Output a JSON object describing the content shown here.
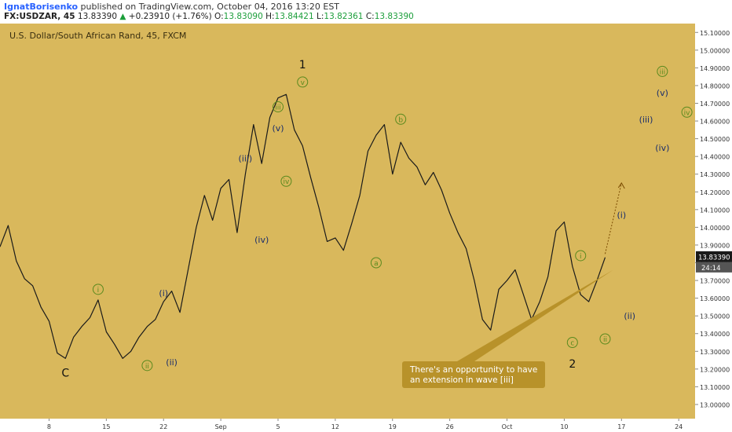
{
  "header": {
    "author": "IgnatBorisenko",
    "published": "published on TradingView.com, October 04, 2016 13:20 EST",
    "symbol": "FX:USDZAR, 45",
    "last": "13.83390",
    "change_arrow": "▲",
    "change": "+0.23910 (+1.76%)",
    "o_label": "O:",
    "o": "13.83090",
    "h_label": "H:",
    "h": "13.84421",
    "l_label": "L:",
    "l": "13.82361",
    "c_label": "C:",
    "c": "13.83390"
  },
  "colors": {
    "background": "#d9b85c",
    "candle": "#1a1a1a",
    "wave_green": "#5a8a1e",
    "wave_navy": "#1a2d6b",
    "callout_fill": "#b8922a",
    "price_tag": "#1a1a1a"
  },
  "chart_data": {
    "type": "line",
    "title": "U.S. Dollar/South African Rand, 45, FXCM",
    "ylim": [
      12.92,
      15.15
    ],
    "y_ticks": [
      "15.10000",
      "15.00000",
      "14.90000",
      "14.80000",
      "14.70000",
      "14.60000",
      "14.50000",
      "14.40000",
      "14.30000",
      "14.20000",
      "14.10000",
      "14.00000",
      "13.90000",
      "13.80000",
      "13.70000",
      "13.60000",
      "13.50000",
      "13.40000",
      "13.30000",
      "13.20000",
      "13.10000",
      "13.00000"
    ],
    "x_ticks": [
      "8",
      "15",
      "22",
      "Sep",
      "5",
      "12",
      "19",
      "26",
      "Oct",
      "10",
      "17",
      "24"
    ],
    "xlim": [
      "2016-08-02",
      "2016-10-26"
    ],
    "grid": false,
    "last_price_label": "13.83390",
    "countdown_label": "24:14",
    "series": [
      {
        "points": [
          [
            "2016-08-02",
            13.89
          ],
          [
            "2016-08-03",
            14.01
          ],
          [
            "2016-08-04",
            13.81
          ],
          [
            "2016-08-05",
            13.71
          ],
          [
            "2016-08-06",
            13.67
          ],
          [
            "2016-08-07",
            13.55
          ],
          [
            "2016-08-08",
            13.47
          ],
          [
            "2016-08-09",
            13.29
          ],
          [
            "2016-08-10",
            13.26
          ],
          [
            "2016-08-11",
            13.38
          ],
          [
            "2016-08-12",
            13.44
          ],
          [
            "2016-08-13",
            13.49
          ],
          [
            "2016-08-14",
            13.59
          ],
          [
            "2016-08-15",
            13.41
          ],
          [
            "2016-08-16",
            13.34
          ],
          [
            "2016-08-17",
            13.26
          ],
          [
            "2016-08-18",
            13.3
          ],
          [
            "2016-08-19",
            13.38
          ],
          [
            "2016-08-20",
            13.44
          ],
          [
            "2016-08-21",
            13.48
          ],
          [
            "2016-08-22",
            13.58
          ],
          [
            "2016-08-23",
            13.64
          ],
          [
            "2016-08-24",
            13.52
          ],
          [
            "2016-08-25",
            13.76
          ],
          [
            "2016-08-26",
            14.0
          ],
          [
            "2016-08-27",
            14.18
          ],
          [
            "2016-08-28",
            14.04
          ],
          [
            "2016-08-29",
            14.22
          ],
          [
            "2016-08-30",
            14.27
          ],
          [
            "2016-08-31",
            13.97
          ],
          [
            "2016-09-01",
            14.3
          ],
          [
            "2016-09-02",
            14.58
          ],
          [
            "2016-09-03",
            14.36
          ],
          [
            "2016-09-04",
            14.62
          ],
          [
            "2016-09-05",
            14.73
          ],
          [
            "2016-09-06",
            14.75
          ],
          [
            "2016-09-07",
            14.55
          ],
          [
            "2016-09-08",
            14.46
          ],
          [
            "2016-09-09",
            14.28
          ],
          [
            "2016-09-10",
            14.11
          ],
          [
            "2016-09-11",
            13.92
          ],
          [
            "2016-09-12",
            13.94
          ],
          [
            "2016-09-13",
            13.87
          ],
          [
            "2016-09-14",
            14.02
          ],
          [
            "2016-09-15",
            14.18
          ],
          [
            "2016-09-16",
            14.43
          ],
          [
            "2016-09-17",
            14.52
          ],
          [
            "2016-09-18",
            14.58
          ],
          [
            "2016-09-19",
            14.3
          ],
          [
            "2016-09-20",
            14.48
          ],
          [
            "2016-09-21",
            14.39
          ],
          [
            "2016-09-22",
            14.34
          ],
          [
            "2016-09-23",
            14.24
          ],
          [
            "2016-09-24",
            14.31
          ],
          [
            "2016-09-25",
            14.21
          ],
          [
            "2016-09-26",
            14.08
          ],
          [
            "2016-09-27",
            13.97
          ],
          [
            "2016-09-28",
            13.88
          ],
          [
            "2016-09-29",
            13.7
          ],
          [
            "2016-09-30",
            13.48
          ],
          [
            "2016-10-01",
            13.42
          ],
          [
            "2016-10-02",
            13.65
          ],
          [
            "2016-10-03",
            13.7
          ],
          [
            "2016-10-04",
            13.76
          ],
          [
            "2016-10-05",
            13.62
          ],
          [
            "2016-10-06",
            13.48
          ],
          [
            "2016-10-07",
            13.58
          ],
          [
            "2016-10-08",
            13.72
          ],
          [
            "2016-10-09",
            13.98
          ],
          [
            "2016-10-10",
            14.03
          ],
          [
            "2016-10-11",
            13.78
          ],
          [
            "2016-10-12",
            13.62
          ],
          [
            "2016-10-13",
            13.58
          ],
          [
            "2016-10-14",
            13.7
          ],
          [
            "2016-10-15",
            13.83
          ]
        ]
      }
    ],
    "annotations": {
      "wave_labels": [
        {
          "text": "C",
          "date": "2016-08-10",
          "price": 13.18,
          "style": "plain"
        },
        {
          "text": "i",
          "date": "2016-08-14",
          "price": 13.65,
          "style": "circle"
        },
        {
          "text": "ii",
          "date": "2016-08-20",
          "price": 13.22,
          "style": "circle"
        },
        {
          "text": "(i)",
          "date": "2016-08-22",
          "price": 13.63,
          "style": "navy"
        },
        {
          "text": "(ii)",
          "date": "2016-08-23",
          "price": 13.24,
          "style": "navy"
        },
        {
          "text": "(iii)",
          "date": "2016-09-01",
          "price": 14.39,
          "style": "navy"
        },
        {
          "text": "(iv)",
          "date": "2016-09-03",
          "price": 13.93,
          "style": "navy"
        },
        {
          "text": "iii",
          "date": "2016-09-05",
          "price": 14.68,
          "style": "circle"
        },
        {
          "text": "(v)",
          "date": "2016-09-05",
          "price": 14.56,
          "style": "navy"
        },
        {
          "text": "iv",
          "date": "2016-09-06",
          "price": 14.26,
          "style": "circle"
        },
        {
          "text": "v",
          "date": "2016-09-08",
          "price": 14.82,
          "style": "circle"
        },
        {
          "text": "1",
          "date": "2016-09-08",
          "price": 14.92,
          "style": "plain"
        },
        {
          "text": "a",
          "date": "2016-09-17",
          "price": 13.8,
          "style": "circle"
        },
        {
          "text": "b",
          "date": "2016-09-20",
          "price": 14.61,
          "style": "circle"
        },
        {
          "text": "c",
          "date": "2016-10-11",
          "price": 13.35,
          "style": "circle"
        },
        {
          "text": "2",
          "date": "2016-10-11",
          "price": 13.23,
          "style": "plain"
        },
        {
          "text": "i",
          "date": "2016-10-12",
          "price": 13.84,
          "style": "circle"
        },
        {
          "text": "ii",
          "date": "2016-10-15",
          "price": 13.37,
          "style": "circle"
        },
        {
          "text": "(i)",
          "date": "2016-10-17",
          "price": 14.07,
          "style": "navy"
        },
        {
          "text": "(ii)",
          "date": "2016-10-18",
          "price": 13.5,
          "style": "navy"
        },
        {
          "text": "(iii)",
          "date": "2016-10-20",
          "price": 14.61,
          "style": "navy"
        },
        {
          "text": "iii",
          "date": "2016-10-22",
          "price": 14.88,
          "style": "circle"
        },
        {
          "text": "(v)",
          "date": "2016-10-22",
          "price": 14.76,
          "style": "navy"
        },
        {
          "text": "(iv)",
          "date": "2016-10-22",
          "price": 14.45,
          "style": "navy"
        },
        {
          "text": "iv",
          "date": "2016-10-25",
          "price": 14.65,
          "style": "circle"
        }
      ],
      "projection": {
        "from": [
          "2016-10-15",
          13.85
        ],
        "to": [
          "2016-10-17",
          14.25
        ]
      },
      "callout": {
        "text_lines": [
          "There's an opportunity to have",
          "an extension in wave [iii]"
        ],
        "pointer_at": [
          "2016-10-16",
          13.76
        ]
      }
    }
  }
}
